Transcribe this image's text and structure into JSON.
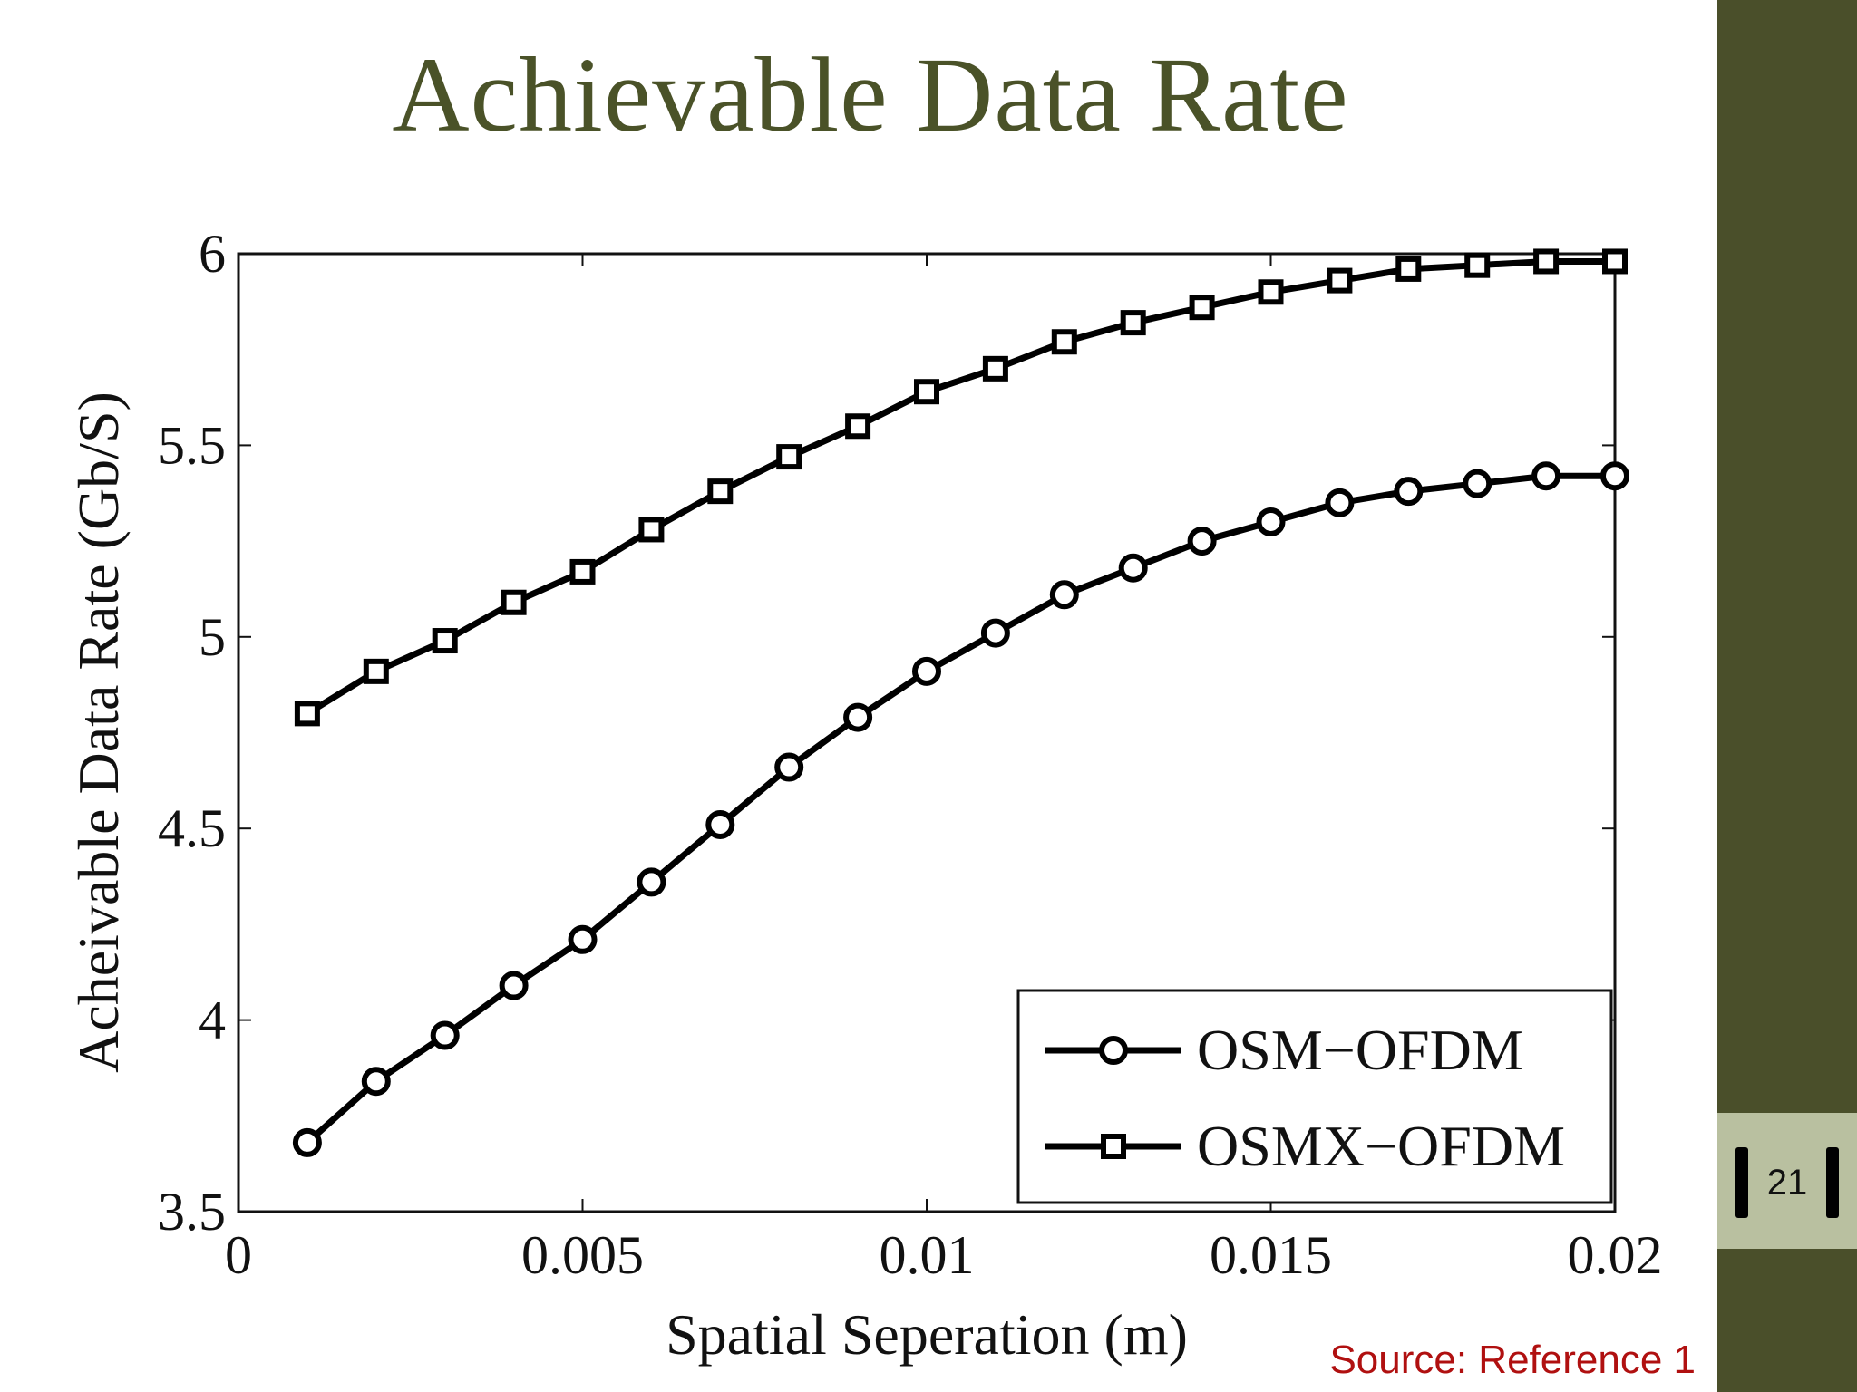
{
  "slide": {
    "title": "Achievable Data Rate",
    "source": "Source: Reference 1",
    "page_number": "21"
  },
  "colors": {
    "title": "#4a5228",
    "sidebar": "#4a4f2a",
    "page_box": "#b9c0a0",
    "source": "#b01010",
    "series_line": "#000000"
  },
  "chart_data": {
    "type": "line",
    "title": "",
    "xlabel": "Spatial Seperation (m)",
    "ylabel": "Acheivable Data Rate (Gb/S)",
    "xlim": [
      0,
      0.02
    ],
    "ylim": [
      3.5,
      6
    ],
    "x_ticks": [
      0,
      0.005,
      0.01,
      0.015,
      0.02
    ],
    "x_tick_labels": [
      "0",
      "0.005",
      "0.01",
      "0.015",
      "0.02"
    ],
    "y_ticks": [
      3.5,
      4,
      4.5,
      5,
      5.5,
      6
    ],
    "y_tick_labels": [
      "3.5",
      "4",
      "4.5",
      "5",
      "5.5",
      "6"
    ],
    "grid": false,
    "legend_position": "bottom-right",
    "x": [
      0.001,
      0.002,
      0.003,
      0.004,
      0.005,
      0.006,
      0.007,
      0.008,
      0.009,
      0.01,
      0.011,
      0.012,
      0.013,
      0.014,
      0.015,
      0.016,
      0.017,
      0.018,
      0.019,
      0.02
    ],
    "series": [
      {
        "name": "OSM−OFDM",
        "marker": "circle",
        "values": [
          3.68,
          3.84,
          3.96,
          4.09,
          4.21,
          4.36,
          4.51,
          4.66,
          4.79,
          4.91,
          5.01,
          5.11,
          5.18,
          5.25,
          5.3,
          5.35,
          5.38,
          5.4,
          5.42,
          5.42
        ]
      },
      {
        "name": "OSMX−OFDM",
        "marker": "square",
        "values": [
          4.8,
          4.91,
          4.99,
          5.09,
          5.17,
          5.28,
          5.38,
          5.47,
          5.55,
          5.64,
          5.7,
          5.77,
          5.82,
          5.86,
          5.9,
          5.93,
          5.96,
          5.97,
          5.98,
          5.98
        ]
      }
    ]
  }
}
